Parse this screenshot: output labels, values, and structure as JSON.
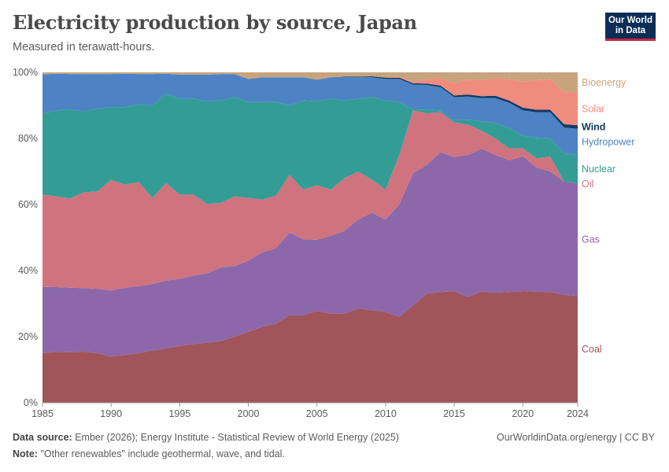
{
  "header": {
    "title": "Electricity production by source, Japan",
    "subtitle": "Measured in terawatt-hours.",
    "logo_line1": "Our World",
    "logo_line2": "in Data"
  },
  "footer": {
    "source_label": "Data source:",
    "source_text": "Ember (2026); Energy Institute - Statistical Review of World Energy (2025)",
    "note_label": "Note:",
    "note_text": "\"Other renewables\" include geothermal, wave, and tidal.",
    "credit": "OurWorldinData.org/energy | CC BY"
  },
  "chart_data": {
    "type": "area",
    "stacked": true,
    "percent": true,
    "x": [
      1985,
      1986,
      1987,
      1988,
      1989,
      1990,
      1991,
      1992,
      1993,
      1994,
      1995,
      1996,
      1997,
      1998,
      1999,
      2000,
      2001,
      2002,
      2003,
      2004,
      2005,
      2006,
      2007,
      2008,
      2009,
      2010,
      2011,
      2012,
      2013,
      2014,
      2015,
      2016,
      2017,
      2018,
      2019,
      2020,
      2021,
      2022,
      2023,
      2024
    ],
    "xticks": [
      1985,
      1990,
      1995,
      2000,
      2005,
      2010,
      2015,
      2020,
      2024
    ],
    "yticks": [
      "0%",
      "20%",
      "40%",
      "60%",
      "80%",
      "100%"
    ],
    "ylim": [
      0,
      100
    ],
    "series": [
      {
        "name": "Coal",
        "color": "#a2545b",
        "values": [
          15,
          15.4,
          15.3,
          15.5,
          15,
          14,
          14.5,
          15,
          15.8,
          16.5,
          17.2,
          17.8,
          18.2,
          18.7,
          20,
          21.5,
          23,
          24,
          26.5,
          26.5,
          27.8,
          27,
          27,
          28.5,
          28,
          27.5,
          26,
          29.5,
          33,
          33.5,
          33.8,
          32,
          33.7,
          33.3,
          33.5,
          33.8,
          33.6,
          33.5,
          32.7,
          32.3
        ]
      },
      {
        "name": "Gas",
        "color": "#8c68aa",
        "values": [
          20.1,
          19.6,
          19.5,
          19.2,
          19.5,
          20,
          20.3,
          20.3,
          20.1,
          20.5,
          20.3,
          20.7,
          21,
          22.3,
          21.3,
          21.5,
          22.5,
          23,
          25,
          23,
          21.5,
          23.5,
          25,
          27,
          29.5,
          28,
          34,
          40,
          39,
          42.3,
          40.6,
          43,
          43.2,
          41.7,
          39.9,
          40.8,
          37.6,
          36.5,
          34.3,
          34.1
        ]
      },
      {
        "name": "Oil",
        "color": "#cf737f",
        "values": [
          27.9,
          27.5,
          27,
          29,
          29.5,
          33.5,
          31.2,
          31.5,
          26.1,
          29.5,
          25.5,
          24.5,
          21,
          19.5,
          21.2,
          19,
          16,
          16,
          17.5,
          15,
          16.5,
          14,
          16,
          14.5,
          10,
          9,
          15,
          19,
          15.6,
          12.2,
          10.4,
          9.2,
          5.4,
          5,
          3.6,
          2.4,
          2.8,
          4.5,
          0,
          0
        ]
      },
      {
        "name": "Nuclear",
        "color": "#339d95",
        "values": [
          24.5,
          26,
          27,
          24.5,
          25,
          22,
          23.5,
          23.5,
          28,
          27,
          29,
          29,
          31,
          31,
          30,
          29,
          29.5,
          28.5,
          21,
          27,
          25.5,
          27.5,
          23.5,
          22,
          25,
          27,
          16,
          0.3,
          1.1,
          0.5,
          0.7,
          1.5,
          2.9,
          4.7,
          6.2,
          3.8,
          6.2,
          5.5,
          8.5,
          8.7
        ]
      },
      {
        "name": "Hydropower",
        "color": "#4d83c4",
        "values": [
          11.9,
          11.1,
          10.7,
          11.3,
          10.5,
          10,
          10.1,
          9.2,
          9.5,
          6.1,
          7.3,
          7.3,
          8.1,
          8,
          7,
          7,
          7.5,
          7.5,
          8.5,
          7,
          6.5,
          6.5,
          7,
          6.5,
          6,
          6.5,
          7,
          7.5,
          7.5,
          7,
          7,
          7,
          7,
          7.5,
          7.6,
          7.7,
          7.7,
          7.9,
          7.8,
          7.8
        ]
      },
      {
        "name": "Wind",
        "color": "#113a64",
        "values": [
          0,
          0,
          0,
          0,
          0,
          0,
          0,
          0,
          0,
          0,
          0,
          0,
          0,
          0,
          0,
          0,
          0,
          0,
          0,
          0,
          0,
          0,
          0.2,
          0.2,
          0.3,
          0.4,
          0.4,
          0.4,
          0.4,
          0.5,
          0.5,
          0.6,
          0.6,
          0.7,
          0.7,
          0.8,
          0.8,
          0.8,
          1,
          1.1
        ]
      },
      {
        "name": "Solar",
        "color": "#ef8c7e",
        "values": [
          0,
          0,
          0,
          0,
          0,
          0,
          0,
          0,
          0,
          0,
          0,
          0,
          0,
          0,
          0,
          0,
          0,
          0,
          0,
          0,
          0,
          0,
          0,
          0,
          0,
          0,
          0.3,
          0.5,
          1.3,
          2.3,
          3.7,
          4.5,
          4.9,
          5.4,
          6.4,
          7.8,
          8.9,
          9.2,
          9.7,
          9.9
        ]
      },
      {
        "name": "Bioenergy",
        "color": "#c8a47d",
        "values": [
          0.6,
          0.4,
          0.5,
          0.5,
          0.5,
          0.5,
          0.4,
          0.5,
          0.5,
          0.4,
          0.7,
          0.7,
          0.7,
          0.5,
          0.5,
          2,
          1.5,
          1.5,
          1.5,
          1.5,
          2.2,
          1.5,
          1.3,
          1.3,
          1.2,
          1.6,
          1.3,
          2.8,
          2.1,
          1.7,
          3.3,
          2.2,
          2.3,
          1.7,
          2.1,
          2.9,
          2.4,
          2.1,
          6,
          6.1
        ]
      }
    ]
  }
}
